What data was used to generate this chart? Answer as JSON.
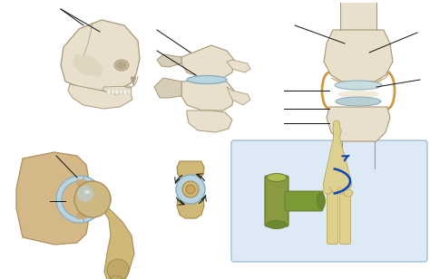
{
  "background_color": "#ffffff",
  "fig_width": 4.74,
  "fig_height": 3.08,
  "dpi": 100,
  "bone_light": "#e8e0cc",
  "bone_mid": "#d8cdb8",
  "bone_dark": "#c8b898",
  "bone_edge": "#a89878",
  "cartilage_blue": "#b8d4e0",
  "cartilage_edge": "#88aabb",
  "synovial_orange": "#cc9944",
  "olive_green": "#8a9a40",
  "olive_dark": "#6a7a30",
  "highlight_box": "#ddeaf5",
  "highlight_edge": "#99bbcc",
  "arrow_blue": "#1144bb",
  "line_color": "#111111",
  "line_width": 0.7,
  "skull_suture": "#b0a080"
}
